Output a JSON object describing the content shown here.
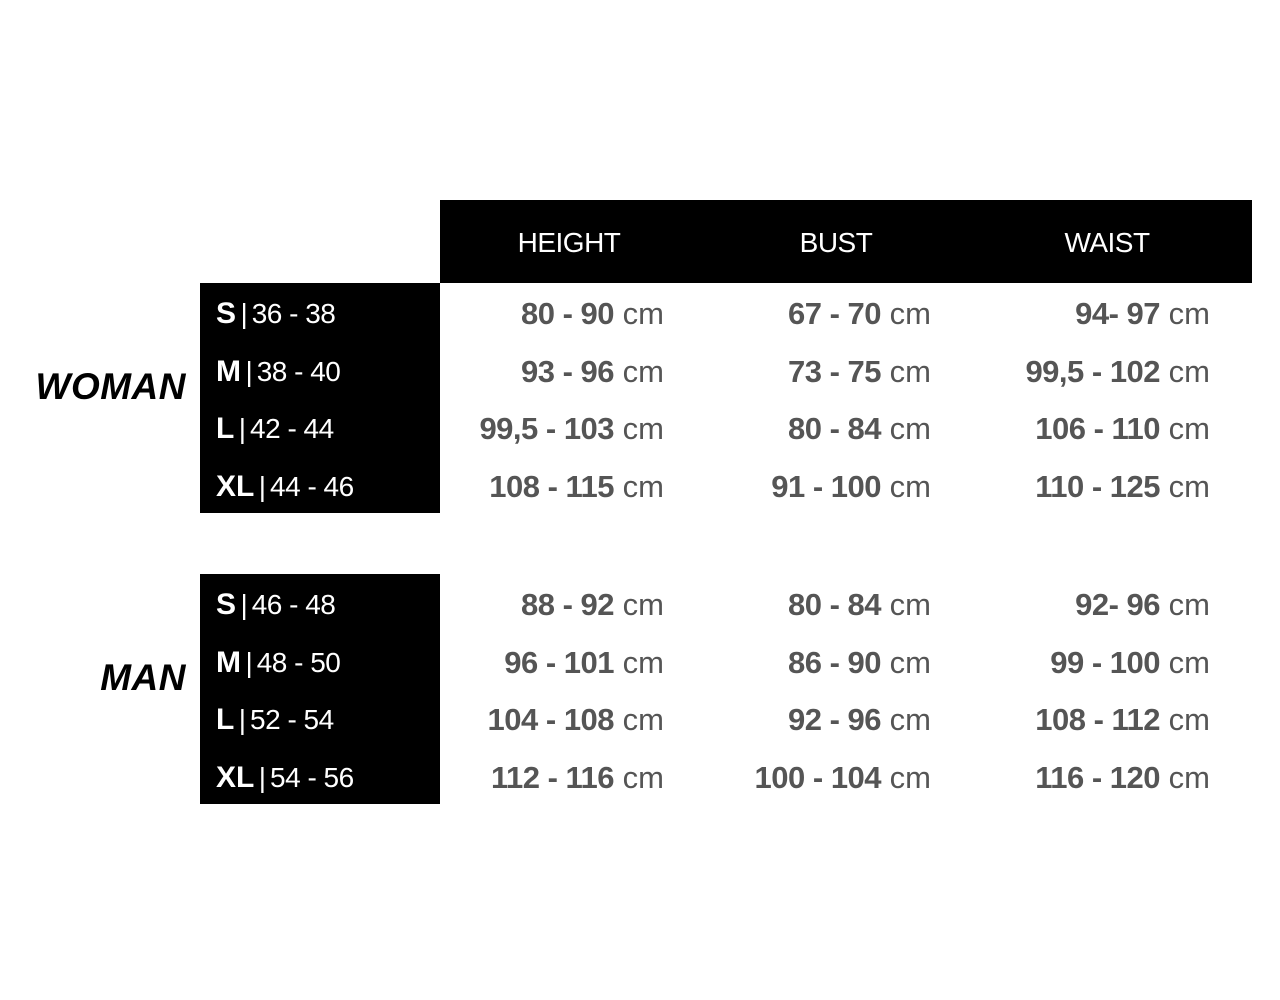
{
  "columns": [
    "HEIGHT",
    "BUST",
    "WAIST"
  ],
  "unit": "cm",
  "groups": [
    {
      "label": "WOMAN",
      "rows": [
        {
          "size": "S",
          "range": "36 - 38",
          "values": [
            "80 - 90",
            "67 - 70",
            "94- 97"
          ]
        },
        {
          "size": "M",
          "range": "38 - 40",
          "values": [
            "93 - 96",
            "73 - 75",
            "99,5 - 102"
          ]
        },
        {
          "size": "L",
          "range": "42 - 44",
          "values": [
            "99,5 - 103",
            "80 - 84",
            "106 - 110"
          ]
        },
        {
          "size": "XL",
          "range": "44 - 46",
          "values": [
            "108 - 115",
            "91 - 100",
            "110 - 125"
          ]
        }
      ]
    },
    {
      "label": "MAN",
      "rows": [
        {
          "size": "S",
          "range": "46 - 48",
          "values": [
            "88 - 92",
            "80 - 84",
            "92- 96"
          ]
        },
        {
          "size": "M",
          "range": "48 - 50",
          "values": [
            "96 - 101",
            "86 - 90",
            "99 - 100"
          ]
        },
        {
          "size": "L",
          "range": "52 - 54",
          "values": [
            "104 - 108",
            "92 - 96",
            "108 - 112"
          ]
        },
        {
          "size": "XL",
          "range": "54 - 56",
          "values": [
            "112 - 116",
            "100 - 104",
            "116 - 120"
          ]
        }
      ]
    }
  ],
  "separator": "|",
  "colors": {
    "header_bg": "#000000",
    "value_text": "#555555"
  }
}
